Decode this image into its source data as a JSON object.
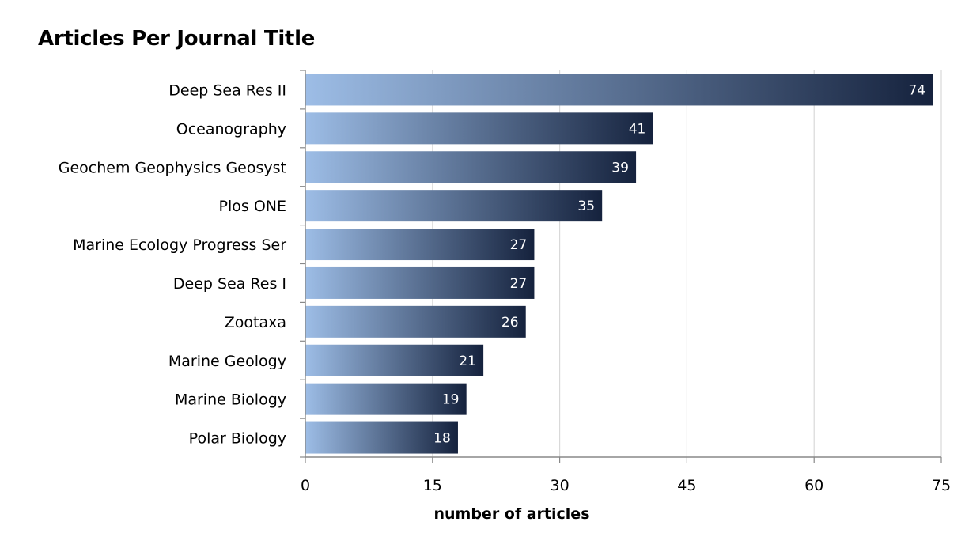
{
  "chart_data": {
    "type": "bar",
    "orientation": "horizontal",
    "title": "Articles Per Journal Title",
    "xlabel": "number of articles",
    "ylabel": "",
    "xlim": [
      0,
      75
    ],
    "xticks": [
      0,
      15,
      30,
      45,
      60,
      75
    ],
    "categories": [
      "Deep Sea Res II",
      "Oceanography",
      "Geochem Geophysics Geosyst",
      "Plos ONE",
      "Marine Ecology Progress Ser",
      "Deep Sea Res I",
      "Zootaxa",
      "Marine Geology",
      "Marine Biology",
      "Polar Biology"
    ],
    "values": [
      74,
      41,
      39,
      35,
      27,
      27,
      26,
      21,
      19,
      18
    ],
    "data_labels": true,
    "grid": "vertical",
    "legend": "none",
    "colors": {
      "bar_start": "#9dbde6",
      "bar_end": "#15223d",
      "grid": "#d9d9d9",
      "axis": "#888888",
      "frame": "#6f8fb0"
    }
  }
}
